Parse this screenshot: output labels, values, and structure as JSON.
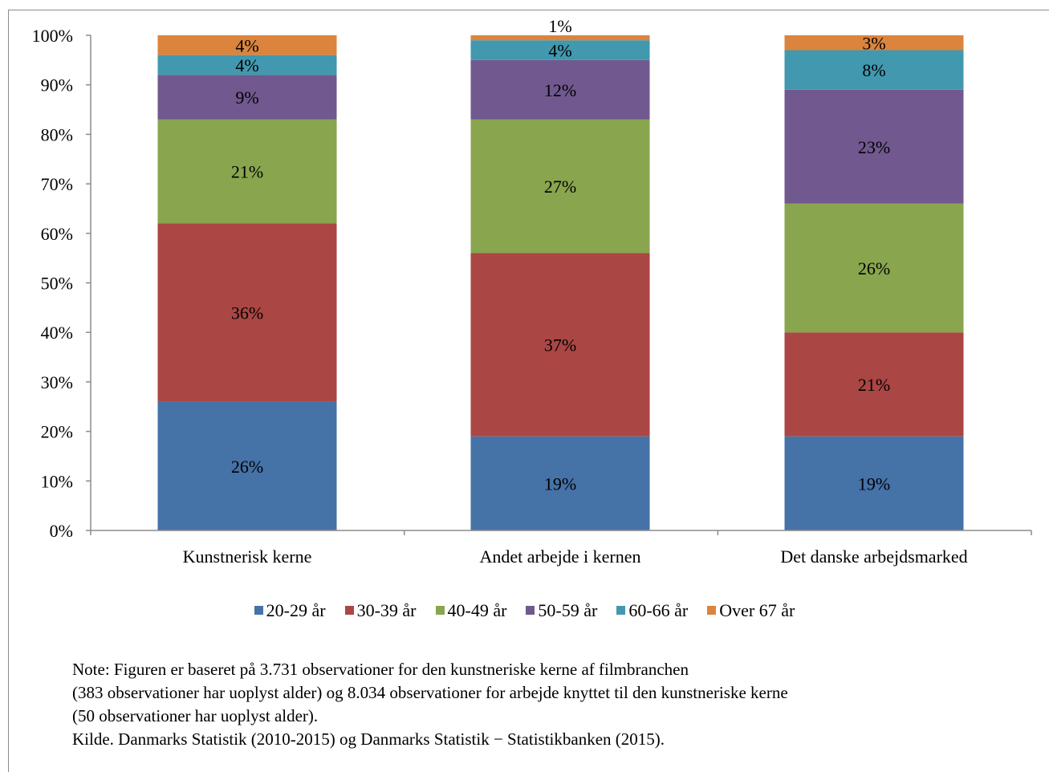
{
  "chart_data": {
    "type": "bar",
    "stacked": true,
    "categories": [
      "Kunstnerisk kerne",
      "Andet arbejde i kernen",
      "Det danske arbejdsmarked"
    ],
    "series": [
      {
        "name": "20-29 år",
        "color": "#4572A7",
        "values": [
          26,
          19,
          19
        ],
        "labels": [
          "26%",
          "19%",
          "19%"
        ]
      },
      {
        "name": "30-39 år",
        "color": "#AA4643",
        "values": [
          36,
          37,
          21
        ],
        "labels": [
          "36%",
          "37%",
          "21%"
        ]
      },
      {
        "name": "40-49 år",
        "color": "#89A54E",
        "values": [
          21,
          27,
          26
        ],
        "labels": [
          "21%",
          "27%",
          "26%"
        ]
      },
      {
        "name": "50-59 år",
        "color": "#71588F",
        "values": [
          9,
          12,
          23
        ],
        "labels": [
          "9%",
          "12%",
          "23%"
        ]
      },
      {
        "name": "60-66 år",
        "color": "#4198AF",
        "values": [
          4,
          4,
          8
        ],
        "labels": [
          "4%",
          "4%",
          "8%"
        ]
      },
      {
        "name": "Over 67 år",
        "color": "#DB843D",
        "values": [
          4,
          1,
          3
        ],
        "labels": [
          "4%",
          "1%",
          "3%"
        ]
      }
    ],
    "ylim": [
      0,
      100
    ],
    "yticks": [
      "0%",
      "10%",
      "20%",
      "30%",
      "40%",
      "50%",
      "60%",
      "70%",
      "80%",
      "90%",
      "100%"
    ],
    "legend_position": "bottom",
    "grid": false
  },
  "note": {
    "lines": [
      "Note: Figuren er baseret på 3.731 observationer for den kunstneriske kerne af filmbranchen",
      "(383 observationer har uoplyst alder) og 8.034 observationer for arbejde knyttet til den kunstneriske kerne",
      "(50 observationer har uoplyst alder).",
      "Kilde. Danmarks Statistik (2010-2015) og Danmarks Statistik − Statistikbanken (2015)."
    ]
  }
}
